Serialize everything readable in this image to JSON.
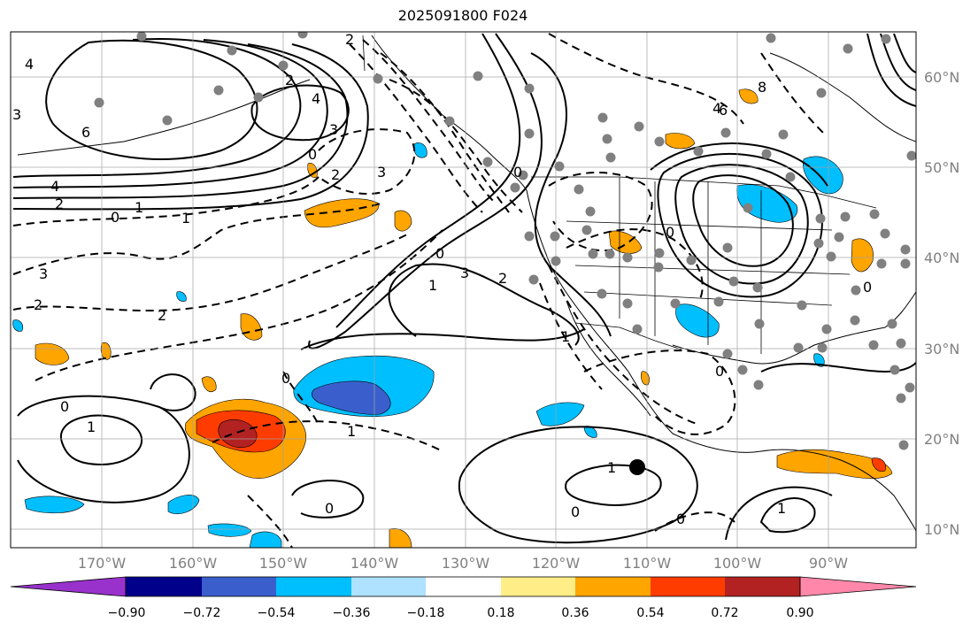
{
  "title": "2025091800 F024",
  "lat_labels": [
    "60°N",
    "50°N",
    "40°N",
    "30°N",
    "20°N",
    "10°N"
  ],
  "lon_labels": [
    "170°W",
    "160°W",
    "150°W",
    "140°W",
    "130°W",
    "120°W",
    "110°W",
    "100°W",
    "90°W"
  ],
  "colorbar": {
    "ticks": [
      "−0.90",
      "−0.72",
      "−0.54",
      "−0.36",
      "−0.18",
      "0.18",
      "0.36",
      "0.54",
      "0.72",
      "0.90"
    ],
    "colors": [
      "#9932cc",
      "#00008b",
      "#3a5fcd",
      "#00bfff",
      "#aee2ff",
      "#ffffff",
      "#ffee88",
      "#ffa500",
      "#ff3c00",
      "#b22222",
      "#ff88aa"
    ]
  },
  "contour_labels": [
    "4",
    "3",
    "6",
    "4",
    "2",
    "0",
    "1",
    "1",
    "2",
    "3",
    "2",
    "2",
    "4",
    "3",
    "0",
    "2",
    "3",
    "0",
    "1",
    "1",
    "0",
    "2",
    "3",
    "2",
    "1",
    "0",
    "1",
    "0",
    "4",
    "8",
    "6",
    "0",
    "0",
    "0",
    "0",
    "1",
    "0",
    "1",
    "0"
  ],
  "colors": {
    "contour": "#000000",
    "grid": "#a0a0a0",
    "station": "#808080",
    "axis_text": "#808080"
  }
}
